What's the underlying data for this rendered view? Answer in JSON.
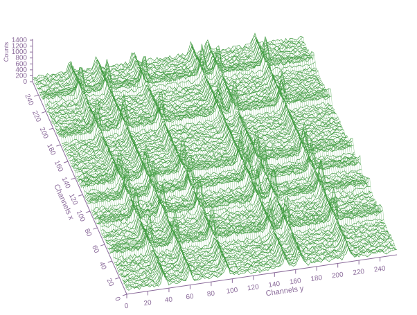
{
  "chart_data": {
    "type": "surface",
    "title": "",
    "xlabel": "Channels x",
    "ylabel": "Channels y",
    "zlabel": "Counts",
    "xlim": [
      0,
      256
    ],
    "ylim": [
      0,
      256
    ],
    "zlim": [
      0,
      1400
    ],
    "x_ticks": [
      "0",
      "20",
      "40",
      "60",
      "80",
      "100",
      "120",
      "140",
      "160",
      "180",
      "200",
      "220",
      "240"
    ],
    "y_ticks": [
      "0",
      "20",
      "40",
      "60",
      "80",
      "100",
      "120",
      "140",
      "160",
      "180",
      "200",
      "220",
      "240"
    ],
    "z_ticks": [
      "0",
      "200",
      "400",
      "600",
      "800",
      "1000",
      "1200",
      "1400"
    ],
    "background_level": 150,
    "ridges_along_y_at_x": [
      40,
      75,
      100,
      120,
      180,
      225
    ],
    "ridges_along_x_at_y": [
      35,
      60,
      95,
      150,
      165,
      210
    ],
    "grid": false,
    "colors": {
      "surface": "#2f8f2f",
      "axis": "#8a6a9a"
    }
  }
}
